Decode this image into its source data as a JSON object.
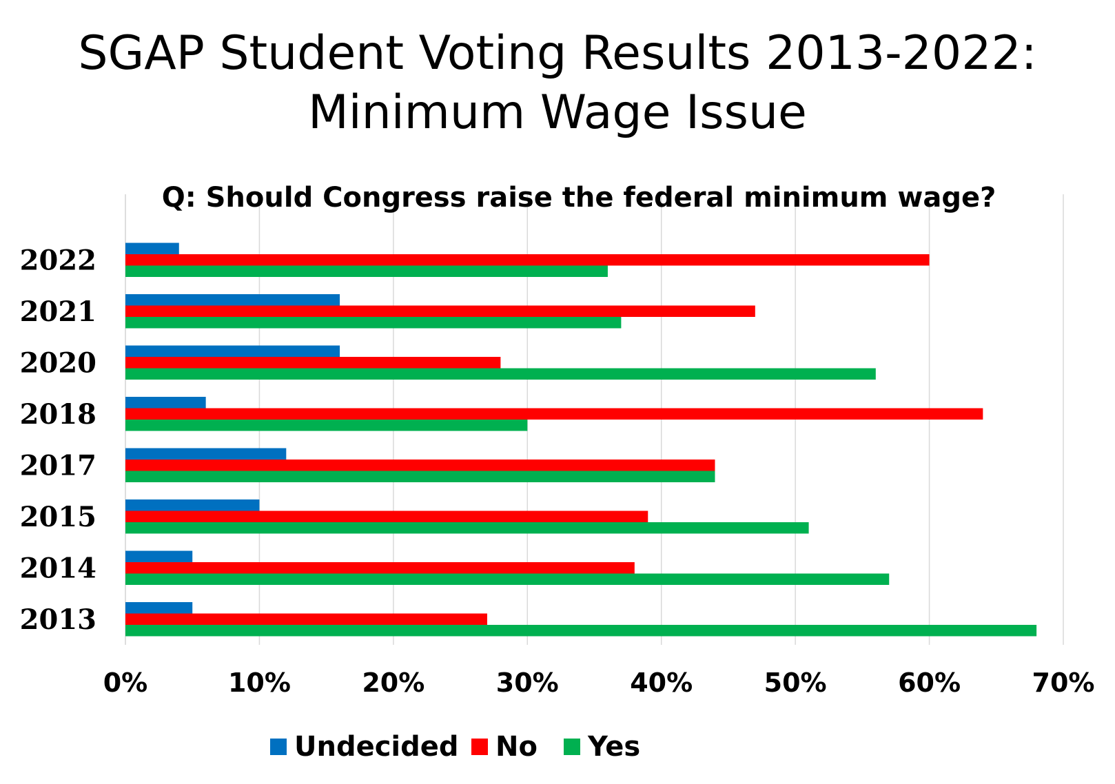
{
  "title_line1": "SGAP Student Voting Results 2013-2022:",
  "title_line2": "Minimum Wage Issue",
  "chart_data": {
    "type": "bar",
    "orientation": "horizontal",
    "subtitle": "Q: Should Congress raise the federal minimum wage?",
    "categories": [
      "2022",
      "2021",
      "2020",
      "2018",
      "2017",
      "2015",
      "2014",
      "2013"
    ],
    "series": [
      {
        "name": "Undecided",
        "color": "#0070C0",
        "values": [
          4,
          16,
          16,
          6,
          12,
          10,
          5,
          5
        ]
      },
      {
        "name": "No",
        "color": "#FF0000",
        "values": [
          60,
          47,
          28,
          64,
          44,
          39,
          38,
          27
        ]
      },
      {
        "name": "Yes",
        "color": "#00B050",
        "values": [
          36,
          37,
          56,
          30,
          44,
          51,
          57,
          68
        ]
      }
    ],
    "x_ticks": [
      "0%",
      "10%",
      "20%",
      "30%",
      "40%",
      "50%",
      "60%",
      "70%"
    ],
    "xlim": [
      0,
      70
    ],
    "grid": true,
    "gridline_color": "#D9D9D9",
    "legend_position": "bottom"
  }
}
